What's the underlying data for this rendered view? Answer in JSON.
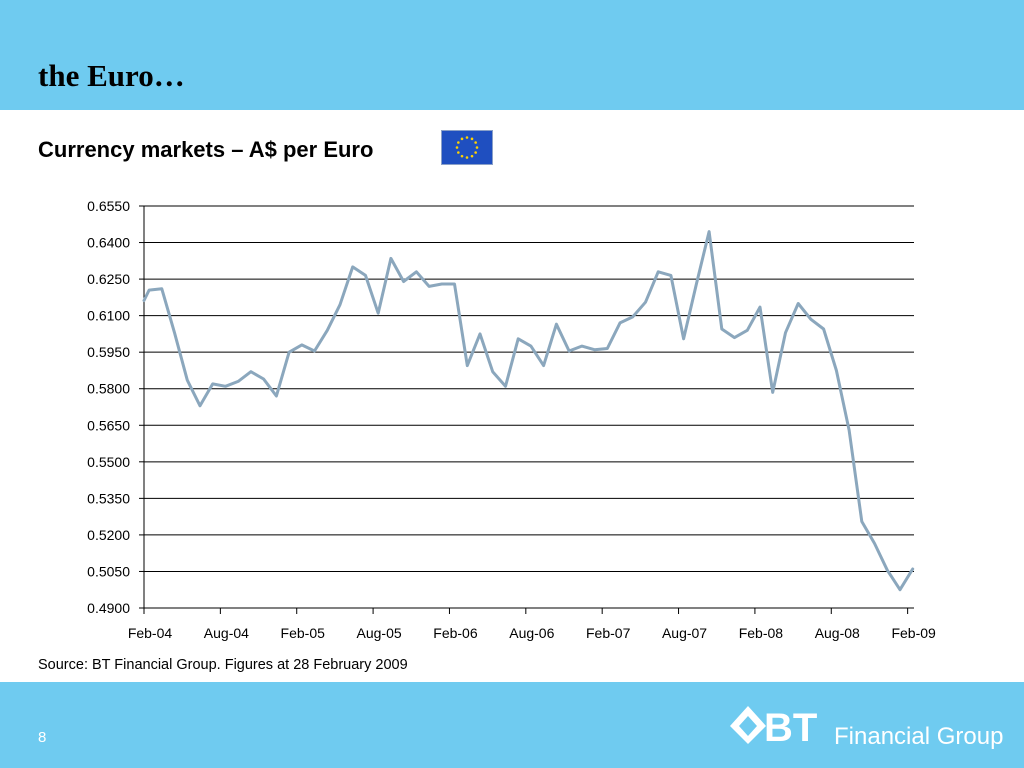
{
  "header": {
    "title": "the Euro…"
  },
  "chart_heading": "Currency markets – A$ per Euro",
  "source_note": "Source: BT Financial Group. Figures at 28 February 2009",
  "footer": {
    "page_number": "8",
    "logo_mark": "BT",
    "logo_text": "Financial Group"
  },
  "colors": {
    "band": "#6fcbf0",
    "line": "#8ba7bd",
    "grid": "#000000",
    "flag_blue": "#1f4fc0",
    "flag_star": "#ffd200"
  },
  "icons": {
    "flag": "eu-flag-icon",
    "logo": "bt-logo-icon"
  },
  "chart_data": {
    "type": "line",
    "title": "",
    "xlabel": "",
    "ylabel": "",
    "ylim": [
      0.49,
      0.655
    ],
    "yticks": [
      "0.6550",
      "0.6400",
      "0.6250",
      "0.6100",
      "0.5950",
      "0.5800",
      "0.5650",
      "0.5500",
      "0.5350",
      "0.5200",
      "0.5050",
      "0.4900"
    ],
    "ytick_values": [
      0.655,
      0.64,
      0.625,
      0.61,
      0.595,
      0.58,
      0.565,
      0.55,
      0.535,
      0.52,
      0.505,
      0.49
    ],
    "xticks": [
      "Feb-04",
      "Aug-04",
      "Feb-05",
      "Aug-05",
      "Feb-06",
      "Aug-06",
      "Feb-07",
      "Aug-07",
      "Feb-08",
      "Aug-08",
      "Feb-09"
    ],
    "x_range_months": [
      0,
      60.5
    ],
    "grid": true,
    "series": [
      {
        "points": [
          [
            0,
            0.6162
          ],
          [
            0.4,
            0.6205
          ],
          [
            1.4,
            0.621
          ],
          [
            2.4,
            0.603
          ],
          [
            3.4,
            0.5835
          ],
          [
            4.4,
            0.573
          ],
          [
            5.4,
            0.582
          ],
          [
            6.4,
            0.581
          ],
          [
            7.4,
            0.583
          ],
          [
            8.4,
            0.587
          ],
          [
            9.4,
            0.584
          ],
          [
            10.4,
            0.577
          ],
          [
            11.4,
            0.595
          ],
          [
            12.4,
            0.598
          ],
          [
            13.4,
            0.5955
          ],
          [
            14.4,
            0.604
          ],
          [
            15.4,
            0.6145
          ],
          [
            16.4,
            0.63
          ],
          [
            17.4,
            0.6265
          ],
          [
            18.4,
            0.611
          ],
          [
            19.4,
            0.6335
          ],
          [
            20.4,
            0.624
          ],
          [
            21.4,
            0.628
          ],
          [
            22.4,
            0.622
          ],
          [
            23.4,
            0.623
          ],
          [
            24.4,
            0.623
          ],
          [
            25.4,
            0.5895
          ],
          [
            26.4,
            0.6025
          ],
          [
            27.4,
            0.587
          ],
          [
            28.4,
            0.581
          ],
          [
            29.4,
            0.6005
          ],
          [
            30.4,
            0.5975
          ],
          [
            31.4,
            0.5895
          ],
          [
            32.4,
            0.6065
          ],
          [
            33.4,
            0.5955
          ],
          [
            34.4,
            0.5975
          ],
          [
            35.4,
            0.596
          ],
          [
            36.4,
            0.5965
          ],
          [
            37.4,
            0.607
          ],
          [
            38.4,
            0.6095
          ],
          [
            39.4,
            0.6155
          ],
          [
            40.4,
            0.628
          ],
          [
            41.4,
            0.6265
          ],
          [
            42.4,
            0.6005
          ],
          [
            43.4,
            0.623
          ],
          [
            44.4,
            0.6445
          ],
          [
            45.4,
            0.6045
          ],
          [
            46.4,
            0.601
          ],
          [
            47.4,
            0.604
          ],
          [
            48.4,
            0.6135
          ],
          [
            49.4,
            0.5785
          ],
          [
            50.4,
            0.603
          ],
          [
            51.4,
            0.615
          ],
          [
            52.4,
            0.6085
          ],
          [
            53.4,
            0.6045
          ],
          [
            54.4,
            0.5875
          ],
          [
            55.4,
            0.563
          ],
          [
            56.4,
            0.5255
          ],
          [
            57.4,
            0.5165
          ],
          [
            58.4,
            0.5055
          ],
          [
            59.4,
            0.4975
          ],
          [
            60.4,
            0.506
          ]
        ]
      }
    ]
  }
}
